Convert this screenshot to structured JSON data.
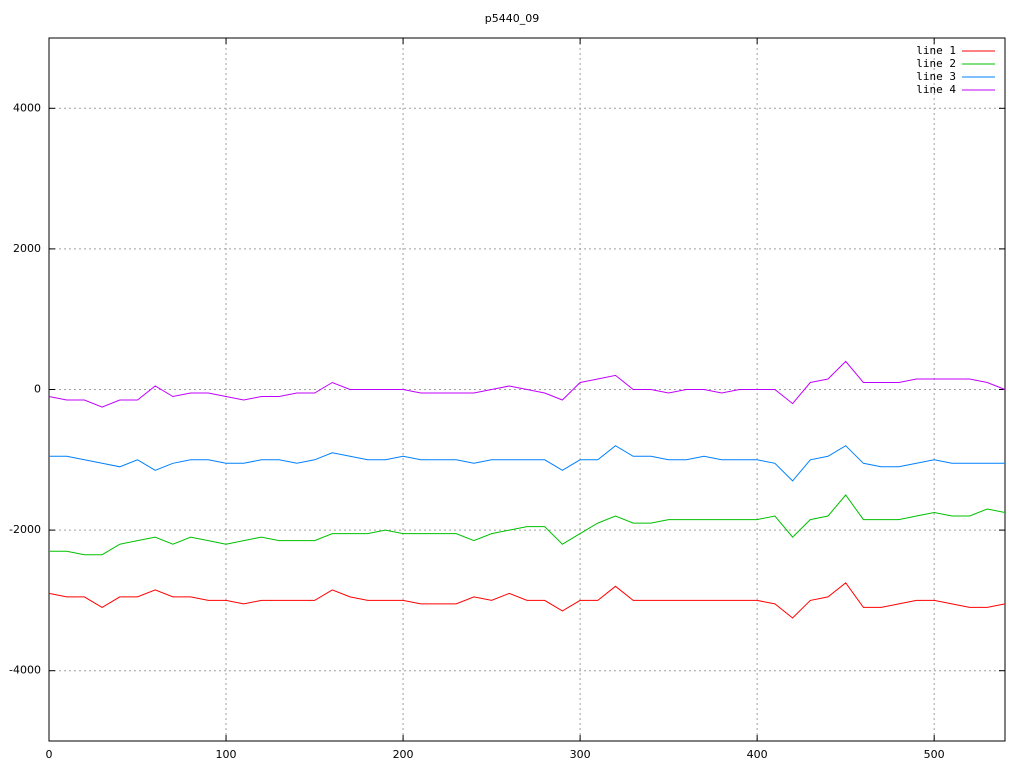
{
  "chart_data": {
    "type": "line",
    "title": "p5440_09",
    "x": [
      0,
      10,
      20,
      30,
      40,
      50,
      60,
      70,
      80,
      90,
      100,
      110,
      120,
      130,
      140,
      150,
      160,
      170,
      180,
      190,
      200,
      210,
      220,
      230,
      240,
      250,
      260,
      270,
      280,
      290,
      300,
      310,
      320,
      330,
      340,
      350,
      360,
      370,
      380,
      390,
      400,
      410,
      420,
      430,
      440,
      450,
      460,
      470,
      480,
      490,
      500,
      510,
      520,
      530,
      540
    ],
    "xlim": [
      0,
      540
    ],
    "xticks": [
      0,
      100,
      200,
      300,
      400,
      500
    ],
    "ylim": [
      -5000,
      5000
    ],
    "yticks": [
      -4000,
      -2000,
      0,
      2000,
      4000
    ],
    "grid": true,
    "legend": "top-right",
    "series": [
      {
        "name": "line 1",
        "color": "#ff0000",
        "values": [
          -2900,
          -2950,
          -2950,
          -3100,
          -2950,
          -2950,
          -2850,
          -2950,
          -2950,
          -3000,
          -3000,
          -3050,
          -3000,
          -3000,
          -3000,
          -3000,
          -2850,
          -2950,
          -3000,
          -3000,
          -3000,
          -3050,
          -3050,
          -3050,
          -2950,
          -3000,
          -2900,
          -3000,
          -3000,
          -3150,
          -3000,
          -3000,
          -2800,
          -3000,
          -3000,
          -3000,
          -3000,
          -3000,
          -3000,
          -3000,
          -3000,
          -3050,
          -3250,
          -3000,
          -2950,
          -2750,
          -3100,
          -3100,
          -3050,
          -3000,
          -3000,
          -3050,
          -3100,
          -3100,
          -3050
        ]
      },
      {
        "name": "line 2",
        "color": "#00c000",
        "values": [
          -2300,
          -2300,
          -2350,
          -2350,
          -2200,
          -2150,
          -2100,
          -2200,
          -2100,
          -2150,
          -2200,
          -2150,
          -2100,
          -2150,
          -2150,
          -2150,
          -2050,
          -2050,
          -2050,
          -2000,
          -2050,
          -2050,
          -2050,
          -2050,
          -2150,
          -2050,
          -2000,
          -1950,
          -1950,
          -2200,
          -2050,
          -1900,
          -1800,
          -1900,
          -1900,
          -1850,
          -1850,
          -1850,
          -1850,
          -1850,
          -1850,
          -1800,
          -2100,
          -1850,
          -1800,
          -1500,
          -1850,
          -1850,
          -1850,
          -1800,
          -1750,
          -1800,
          -1800,
          -1700,
          -1750
        ]
      },
      {
        "name": "line 3",
        "color": "#0080ff",
        "values": [
          -950,
          -950,
          -1000,
          -1050,
          -1100,
          -1000,
          -1150,
          -1050,
          -1000,
          -1000,
          -1050,
          -1050,
          -1000,
          -1000,
          -1050,
          -1000,
          -900,
          -950,
          -1000,
          -1000,
          -950,
          -1000,
          -1000,
          -1000,
          -1050,
          -1000,
          -1000,
          -1000,
          -1000,
          -1150,
          -1000,
          -1000,
          -800,
          -950,
          -950,
          -1000,
          -1000,
          -950,
          -1000,
          -1000,
          -1000,
          -1050,
          -1300,
          -1000,
          -950,
          -800,
          -1050,
          -1100,
          -1100,
          -1050,
          -1000,
          -1050,
          -1050,
          -1050,
          -1050
        ]
      },
      {
        "name": "line 4",
        "color": "#c000ff",
        "values": [
          -100,
          -150,
          -150,
          -250,
          -150,
          -150,
          50,
          -100,
          -50,
          -50,
          -100,
          -150,
          -100,
          -100,
          -50,
          -50,
          100,
          0,
          0,
          0,
          0,
          -50,
          -50,
          -50,
          -50,
          0,
          50,
          0,
          -50,
          -150,
          100,
          150,
          200,
          0,
          0,
          -50,
          0,
          0,
          -50,
          0,
          0,
          0,
          -200,
          100,
          150,
          400,
          100,
          100,
          100,
          150,
          150,
          150,
          150,
          100,
          0
        ]
      }
    ]
  }
}
